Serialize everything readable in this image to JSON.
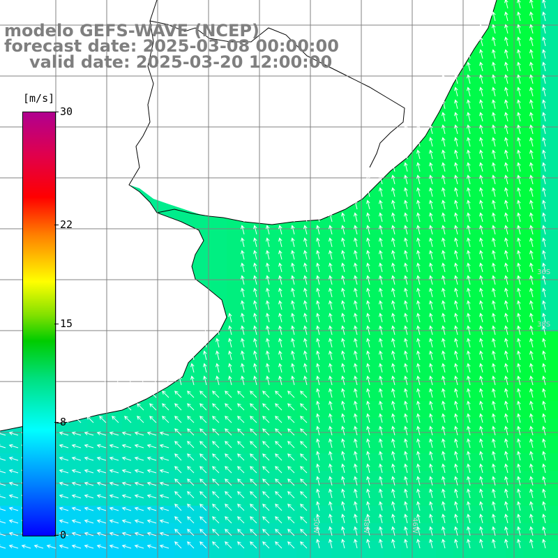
{
  "header": {
    "line1": "modelo GEFS-WAVE (NCEP)",
    "line2": "forecast date: 2025-03-08 00:00:00",
    "line3": "valid date: 2025-03-20 12:00:00"
  },
  "colorbar": {
    "unit": "[m/s]",
    "ticks": [
      "30",
      "22",
      "15",
      "8",
      "0"
    ],
    "tick_values": [
      30,
      22,
      15,
      8,
      0
    ],
    "min": 0,
    "max": 30
  },
  "colors": {
    "land": "#ffffff",
    "grid": "#808080",
    "coast": "#000000",
    "arrow": "#ffffff",
    "title": "#7f7f7f"
  },
  "map": {
    "field": "wind speed",
    "lon_labels": [
      "50W",
      "48W",
      "46W"
    ],
    "lat_labels": [
      "36S",
      "38S"
    ]
  }
}
